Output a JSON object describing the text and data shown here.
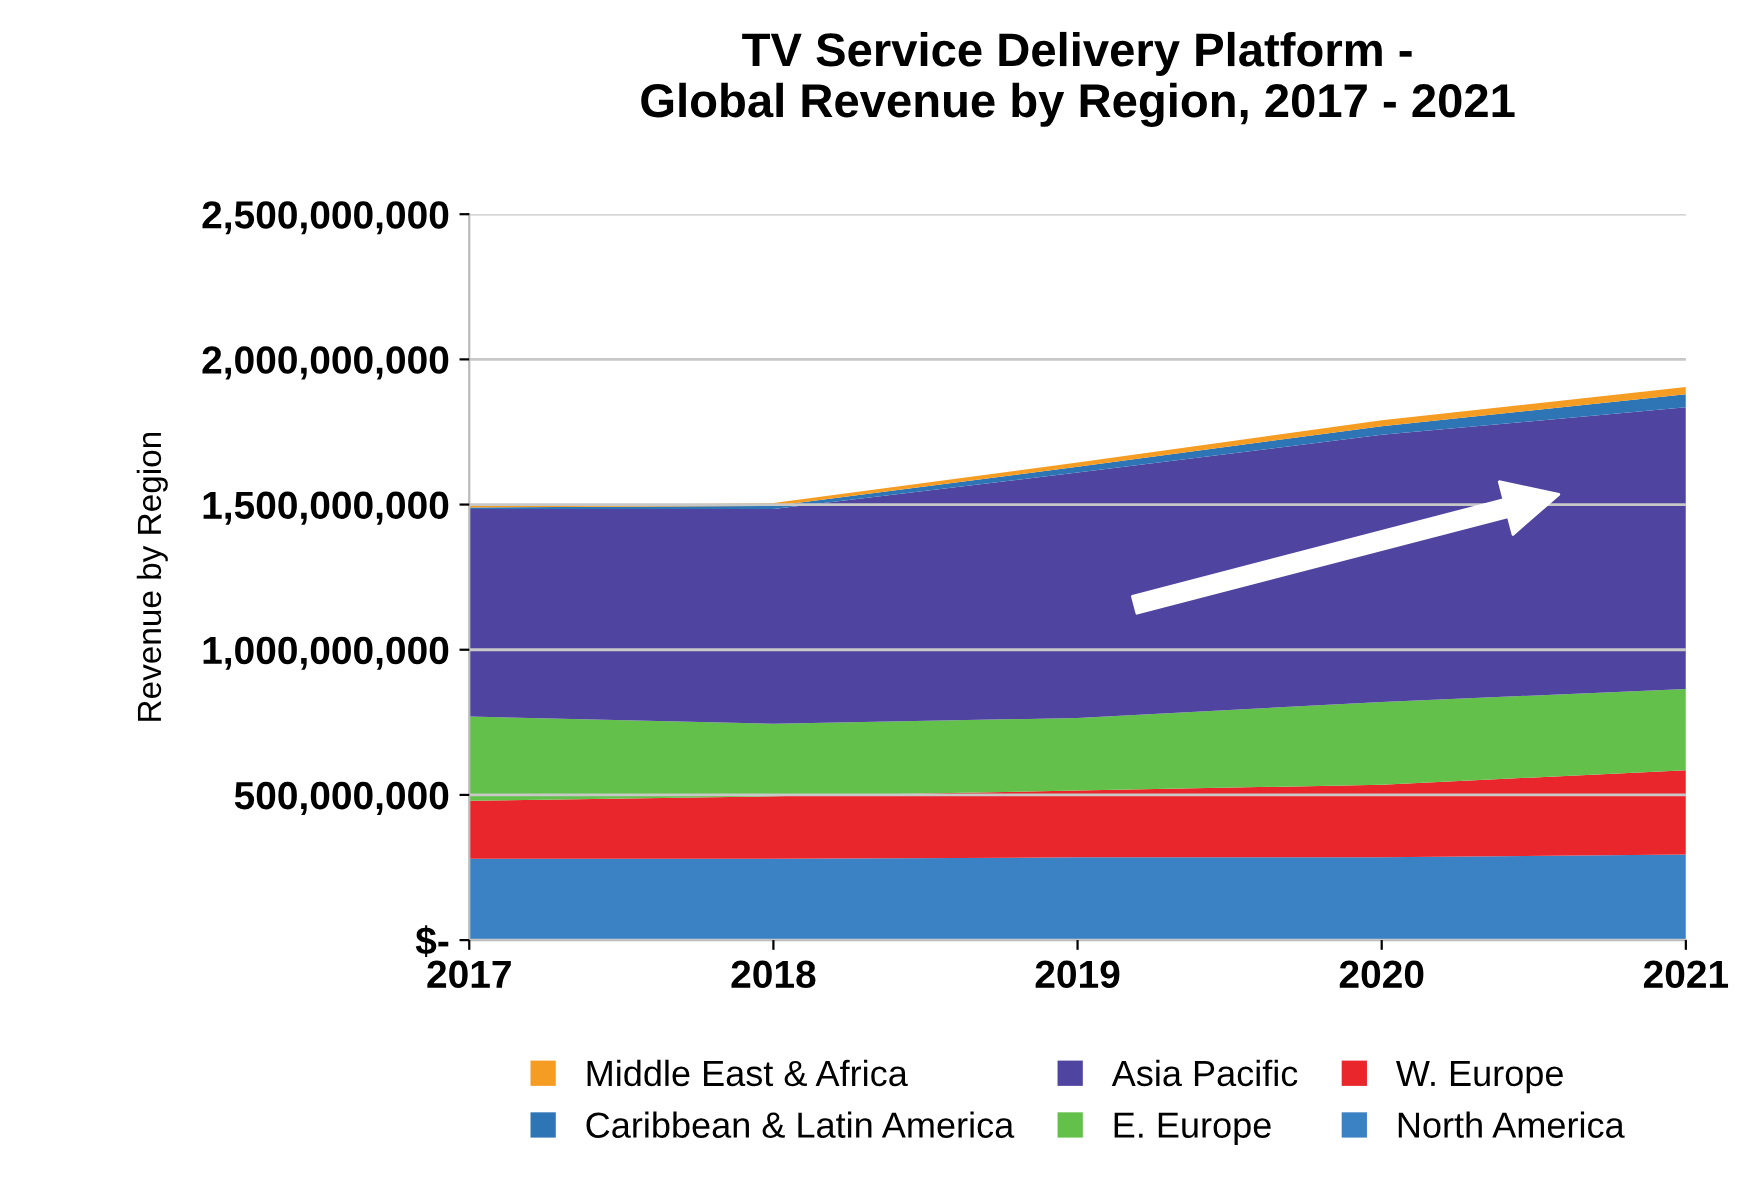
{
  "chart_data": {
    "type": "area",
    "stacked": true,
    "title": "TV Service Delivery Platform -\nGlobal Revenue by Region, 2017 - 2021",
    "ylabel": "Revenue by Region",
    "x": [
      2017,
      2018,
      2019,
      2020,
      2021
    ],
    "xlim": [
      2017,
      2021
    ],
    "xticks": [
      2017,
      2018,
      2019,
      2020,
      2021
    ],
    "ylim": [
      0,
      2500000000
    ],
    "yticks": [
      {
        "value": 0,
        "label": "$-"
      },
      {
        "value": 500000000,
        "label": "500,000,000"
      },
      {
        "value": 1000000000,
        "label": "1,000,000,000"
      },
      {
        "value": 1500000000,
        "label": "1,500,000,000"
      },
      {
        "value": 2000000000,
        "label": "2,000,000,000"
      },
      {
        "value": 2500000000,
        "label": "2,500,000,000"
      }
    ],
    "grid": "y",
    "legend": "bottom",
    "series": [
      {
        "name": "North America",
        "color": "#3b82c4",
        "values": [
          280000000,
          280000000,
          285000000,
          285000000,
          295000000
        ]
      },
      {
        "name": "W. Europe",
        "color": "#e8262b",
        "values": [
          200000000,
          215000000,
          230000000,
          250000000,
          290000000
        ]
      },
      {
        "name": "E. Europe",
        "color": "#63c04a",
        "values": [
          290000000,
          250000000,
          250000000,
          285000000,
          280000000
        ]
      },
      {
        "name": "Asia Pacific",
        "color": "#4f45a1",
        "values": [
          715000000,
          740000000,
          845000000,
          920000000,
          970000000
        ]
      },
      {
        "name": "Caribbean & Latin America",
        "color": "#2e75b6",
        "values": [
          5000000,
          10000000,
          20000000,
          30000000,
          45000000
        ]
      },
      {
        "name": "Middle East & Africa",
        "color": "#f59d22",
        "values": [
          5000000,
          10000000,
          15000000,
          20000000,
          25000000
        ]
      }
    ]
  }
}
